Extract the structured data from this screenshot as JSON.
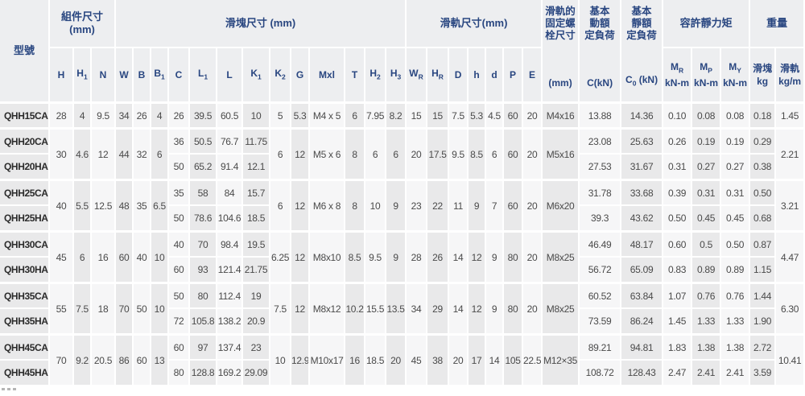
{
  "colors": {
    "header_bg": "#edeef0",
    "header_text": "#294680",
    "stripe_light": "#f6f6f7",
    "stripe_dark": "#e9e9ea",
    "separator": "#ffffff",
    "body_text": "#4a4a4a",
    "model_text": "#2b2b2b"
  },
  "header": {
    "model": "型號",
    "comp_group": "組件尺寸\n(mm)",
    "block_group": "滑塊尺寸 (mm)",
    "rail_group": "滑軌尺寸(mm)",
    "bolt_title": "滑軌的\n固定螺\n栓尺寸",
    "bolt_unit": "(mm)",
    "dyn_title": "基本\n動額\n定負荷",
    "dyn_unit": "C(kN)",
    "stat_title": "基本\n靜額\n定負荷",
    "stat_unit": "C_{0} (kN)",
    "moment_group": "容許靜力矩",
    "weight_group": "重量",
    "cols": [
      "H",
      "H_{1}",
      "N",
      "W",
      "B",
      "B_{1}",
      "C",
      "L_{1}",
      "L",
      "K_{1}",
      "K_{2}",
      "G",
      "Mxl",
      "T",
      "H_{2}",
      "H_{3}",
      "W_{R}",
      "H_{R}",
      "D",
      "h",
      "d",
      "P",
      "E"
    ],
    "moment_cols": [
      "M_{R}\nkN-m",
      "M_{P}\nkN-m",
      "M_{Y}\nkN-m"
    ],
    "weight_cols": [
      "滑塊\nkg",
      "滑軌\nkg/m"
    ]
  },
  "body": {
    "single": {
      "model": "QHH15CA",
      "H": "28",
      "H1": "4",
      "N": "9.5",
      "W": "34",
      "B": "26",
      "B1": "4",
      "C": "26",
      "L1": "39.5",
      "L": "60.5",
      "K1": "10",
      "K2": "5",
      "G": "5.3",
      "Mxl": "M4 x 5",
      "T": "6",
      "H2": "7.95",
      "H3": "8.2",
      "WR": "15",
      "HR": "15",
      "D": "7.5",
      "h": "5.3",
      "d": "4.5",
      "P": "60",
      "E": "20",
      "bolt": "M4x16",
      "Cdyn": "13.88",
      "C0": "14.36",
      "MR": "0.10",
      "MP": "0.08",
      "MY": "0.08",
      "wb": "0.18",
      "wr": "1.45"
    },
    "pairs": [
      {
        "shared": {
          "H": "30",
          "H1": "4.6",
          "N": "12",
          "W": "44",
          "B": "32",
          "B1": "6",
          "K2": "6",
          "G": "12",
          "Mxl": "M5 x 6",
          "T": "8",
          "H2": "6",
          "H3": "6",
          "WR": "20",
          "HR": "17.5",
          "D": "9.5",
          "h": "8.5",
          "d": "6",
          "P": "60",
          "E": "20",
          "bolt": "M5x16",
          "wr": "2.21"
        },
        "ca": {
          "model": "QHH20CA",
          "C": "36",
          "L1": "50.5",
          "L": "76.7",
          "K1": "11.75",
          "Cdyn": "23.08",
          "C0": "25.63",
          "MR": "0.26",
          "MP": "0.19",
          "MY": "0.19",
          "wb": "0.29"
        },
        "ha": {
          "model": "QHH20HA",
          "C": "50",
          "L1": "65.2",
          "L": "91.4",
          "K1": "12.1",
          "Cdyn": "27.53",
          "C0": "31.67",
          "MR": "0.31",
          "MP": "0.27",
          "MY": "0.27",
          "wb": "0.38"
        }
      },
      {
        "shared": {
          "H": "40",
          "H1": "5.5",
          "N": "12.5",
          "W": "48",
          "B": "35",
          "B1": "6.5",
          "K2": "6",
          "G": "12",
          "Mxl": "M6 x 8",
          "T": "8",
          "H2": "10",
          "H3": "9",
          "WR": "23",
          "HR": "22",
          "D": "11",
          "h": "9",
          "d": "7",
          "P": "60",
          "E": "20",
          "bolt": "M6x20",
          "wr": "3.21"
        },
        "ca": {
          "model": "QHH25CA",
          "C": "35",
          "L1": "58",
          "L": "84",
          "K1": "15.7",
          "Cdyn": "31.78",
          "C0": "33.68",
          "MR": "0.39",
          "MP": "0.31",
          "MY": "0.31",
          "wb": "0.50"
        },
        "ha": {
          "model": "QHH25HA",
          "C": "50",
          "L1": "78.6",
          "L": "104.6",
          "K1": "18.5",
          "Cdyn": "39.3",
          "C0": "43.62",
          "MR": "0.50",
          "MP": "0.45",
          "MY": "0.45",
          "wb": "0.68"
        }
      },
      {
        "shared": {
          "H": "45",
          "H1": "6",
          "N": "16",
          "W": "60",
          "B": "40",
          "B1": "10",
          "K2": "6.25",
          "G": "12",
          "Mxl": "M8x10",
          "T": "8.5",
          "H2": "9.5",
          "H3": "9",
          "WR": "28",
          "HR": "26",
          "D": "14",
          "h": "12",
          "d": "9",
          "P": "80",
          "E": "20",
          "bolt": "M8x25",
          "wr": "4.47"
        },
        "ca": {
          "model": "QHH30CA",
          "C": "40",
          "L1": "70",
          "L": "98.4",
          "K1": "19.5",
          "Cdyn": "46.49",
          "C0": "48.17",
          "MR": "0.60",
          "MP": "0.5",
          "MY": "0.50",
          "wb": "0.87"
        },
        "ha": {
          "model": "QHH30HA",
          "C": "60",
          "L1": "93",
          "L": "121.4",
          "K1": "21.75",
          "Cdyn": "56.72",
          "C0": "65.09",
          "MR": "0.83",
          "MP": "0.89",
          "MY": "0.89",
          "wb": "1.15"
        }
      },
      {
        "shared": {
          "H": "55",
          "H1": "7.5",
          "N": "18",
          "W": "70",
          "B": "50",
          "B1": "10",
          "K2": "7.5",
          "G": "12",
          "Mxl": "M8x12",
          "T": "10.2",
          "H2": "15.5",
          "H3": "13.5",
          "WR": "34",
          "HR": "29",
          "D": "14",
          "h": "12",
          "d": "9",
          "P": "80",
          "E": "20",
          "bolt": "M8x25",
          "wr": "6.30"
        },
        "ca": {
          "model": "QHH35CA",
          "C": "50",
          "L1": "80",
          "L": "112.4",
          "K1": "19",
          "Cdyn": "60.52",
          "C0": "63.84",
          "MR": "1.07",
          "MP": "0.76",
          "MY": "0.76",
          "wb": "1.44"
        },
        "ha": {
          "model": "QHH35HA",
          "C": "72",
          "L1": "105.8",
          "L": "138.2",
          "K1": "20.9",
          "Cdyn": "73.59",
          "C0": "86.24",
          "MR": "1.45",
          "MP": "1.33",
          "MY": "1.33",
          "wb": "1.90"
        }
      },
      {
        "shared": {
          "H": "70",
          "H1": "9.2",
          "N": "20.5",
          "W": "86",
          "B": "60",
          "B1": "13",
          "K2": "10",
          "G": "12.9",
          "Mxl": "M10x17",
          "T": "16",
          "H2": "18.5",
          "H3": "20",
          "WR": "45",
          "HR": "38",
          "D": "20",
          "h": "17",
          "d": "14",
          "P": "105",
          "E": "22.5",
          "bolt": "M12×35",
          "wr": "10.41"
        },
        "ca": {
          "model": "QHH45CA",
          "C": "60",
          "L1": "97",
          "L": "137.4",
          "K1": "23",
          "Cdyn": "89.21",
          "C0": "94.81",
          "MR": "1.83",
          "MP": "1.38",
          "MY": "1.38",
          "wb": "2.72"
        },
        "ha": {
          "model": "QHH45HA",
          "C": "80",
          "L1": "128.8",
          "L": "169.2",
          "K1": "29.09",
          "Cdyn": "108.72",
          "C0": "128.43",
          "MR": "2.47",
          "MP": "2.41",
          "MY": "2.41",
          "wb": "3.59"
        }
      }
    ]
  }
}
